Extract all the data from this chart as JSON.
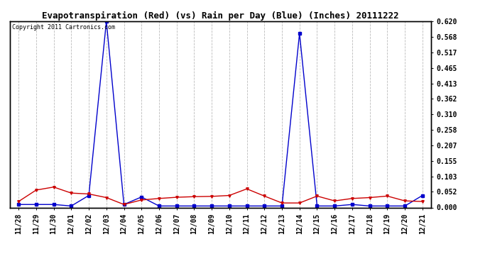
{
  "title": "Evapotranspiration (Red) (vs) Rain per Day (Blue) (Inches) 20111222",
  "copyright": "Copyright 2011 Cartronics.com",
  "labels": [
    "11/28",
    "11/29",
    "11/30",
    "12/01",
    "12/02",
    "12/03",
    "12/04",
    "12/05",
    "12/06",
    "12/07",
    "12/08",
    "12/09",
    "12/10",
    "12/11",
    "12/12",
    "12/13",
    "12/14",
    "12/15",
    "12/16",
    "12/17",
    "12/18",
    "12/19",
    "12/20",
    "12/21"
  ],
  "blue_rain": [
    0.01,
    0.01,
    0.01,
    0.005,
    0.04,
    0.62,
    0.01,
    0.035,
    0.005,
    0.005,
    0.005,
    0.005,
    0.005,
    0.005,
    0.005,
    0.005,
    0.58,
    0.005,
    0.005,
    0.01,
    0.005,
    0.005,
    0.005,
    0.04
  ],
  "red_et": [
    0.02,
    0.058,
    0.068,
    0.048,
    0.045,
    0.033,
    0.01,
    0.025,
    0.03,
    0.034,
    0.036,
    0.037,
    0.04,
    0.062,
    0.038,
    0.015,
    0.015,
    0.038,
    0.022,
    0.03,
    0.033,
    0.038,
    0.022,
    0.02
  ],
  "ylim": [
    0.0,
    0.62
  ],
  "yticks": [
    0.0,
    0.052,
    0.103,
    0.155,
    0.207,
    0.258,
    0.31,
    0.362,
    0.413,
    0.465,
    0.517,
    0.568,
    0.62
  ],
  "blue_color": "#0000cc",
  "red_color": "#cc0000",
  "bg_color": "#ffffff",
  "grid_color": "#bbbbbb",
  "title_fontsize": 9,
  "copyright_fontsize": 6,
  "tick_fontsize": 7,
  "ytick_fontsize": 7
}
